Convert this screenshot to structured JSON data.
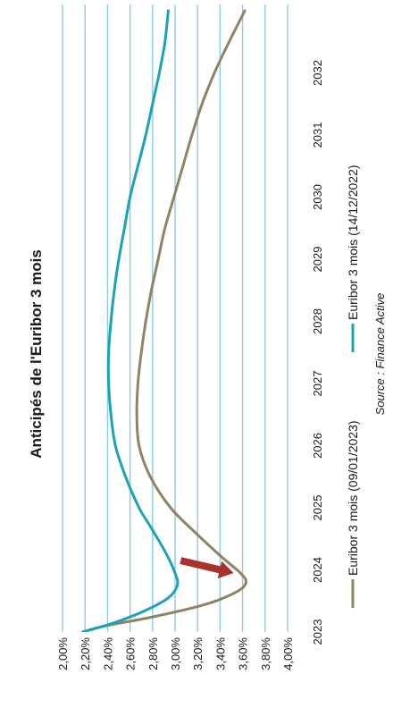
{
  "chart_data": {
    "type": "line",
    "title": "Anticipés de l'Euribor 3 mois",
    "source": "Source : Finance Active",
    "xlabel": "",
    "ylabel": "",
    "ylim": [
      0.02,
      0.04
    ],
    "xlim": [
      2023,
      2033
    ],
    "grid": true,
    "legend_position": "bottom",
    "y_ticks": [
      {
        "value": 0.02,
        "label": "2,00%"
      },
      {
        "value": 0.022,
        "label": "2,20%"
      },
      {
        "value": 0.024,
        "label": "2,40%"
      },
      {
        "value": 0.026,
        "label": "2,60%"
      },
      {
        "value": 0.028,
        "label": "2,80%"
      },
      {
        "value": 0.03,
        "label": "3,00%"
      },
      {
        "value": 0.032,
        "label": "3,20%"
      },
      {
        "value": 0.034,
        "label": "3,40%"
      },
      {
        "value": 0.036,
        "label": "3,60%"
      },
      {
        "value": 0.038,
        "label": "3,80%"
      },
      {
        "value": 0.04,
        "label": "4,00%"
      }
    ],
    "x_ticks": [
      {
        "value": 2023,
        "label": "2023"
      },
      {
        "value": 2024,
        "label": "2024"
      },
      {
        "value": 2025,
        "label": "2025"
      },
      {
        "value": 2026,
        "label": "2026"
      },
      {
        "value": 2027,
        "label": "2027"
      },
      {
        "value": 2028,
        "label": "2028"
      },
      {
        "value": 2029,
        "label": "2029"
      },
      {
        "value": 2030,
        "label": "2030"
      },
      {
        "value": 2031,
        "label": "2031"
      },
      {
        "value": 2032,
        "label": "2032"
      }
    ],
    "series": [
      {
        "name": "Euribor 3 mois (09/01/2023)",
        "color": "#8f8462",
        "x": [
          2023.0,
          2023.1,
          2023.25,
          2023.45,
          2023.65,
          2023.8,
          2023.95,
          2024.2,
          2024.6,
          2025.0,
          2025.5,
          2026.0,
          2026.5,
          2027.0,
          2027.5,
          2028.0,
          2028.5,
          2029.0,
          2029.5,
          2030.0,
          2030.5,
          2031.0,
          2031.5,
          2032.0,
          2032.5,
          2033.0
        ],
        "y": [
          0.0218,
          0.0238,
          0.0282,
          0.0328,
          0.0355,
          0.0363,
          0.0358,
          0.0342,
          0.0318,
          0.0296,
          0.0278,
          0.0268,
          0.0266,
          0.0267,
          0.027,
          0.0274,
          0.0279,
          0.0285,
          0.0291,
          0.0299,
          0.0307,
          0.0315,
          0.0324,
          0.0335,
          0.0348,
          0.0362
        ]
      },
      {
        "name": "Euribor 3 mois (14/12/2022)",
        "color": "#1aa3b8",
        "x": [
          2023.0,
          2023.15,
          2023.35,
          2023.55,
          2023.75,
          2023.95,
          2024.3,
          2024.7,
          2025.0,
          2025.5,
          2026.0,
          2026.5,
          2027.0,
          2027.5,
          2028.0,
          2028.5,
          2029.0,
          2029.5,
          2030.0,
          2030.5,
          2031.0,
          2031.5,
          2032.0,
          2032.5,
          2033.0
        ],
        "y": [
          0.0218,
          0.0246,
          0.0274,
          0.0294,
          0.0302,
          0.03,
          0.0291,
          0.0278,
          0.0268,
          0.0256,
          0.0247,
          0.0243,
          0.0241,
          0.0241,
          0.0243,
          0.0246,
          0.025,
          0.0255,
          0.026,
          0.0267,
          0.0274,
          0.028,
          0.0286,
          0.0291,
          0.0294
        ]
      }
    ],
    "annotations": [
      {
        "type": "arrow",
        "color": "#a8332c",
        "from": {
          "x": 2024.15,
          "y": 0.0305
        },
        "to": {
          "x": 2023.95,
          "y": 0.0352
        }
      }
    ]
  }
}
